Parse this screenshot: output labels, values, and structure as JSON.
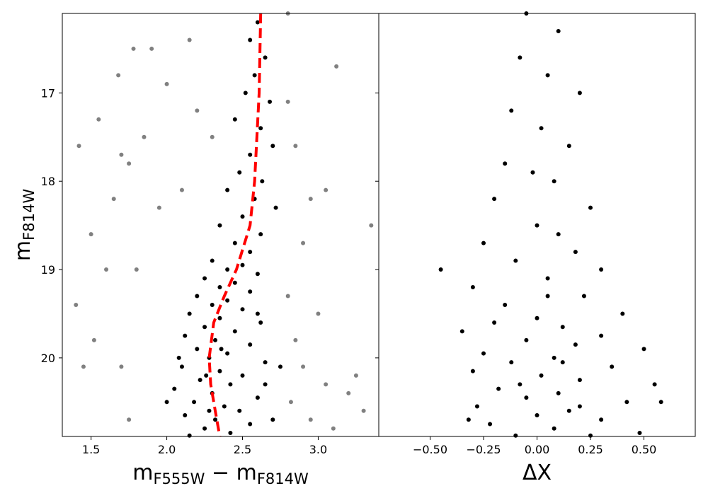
{
  "chart_data": [
    {
      "type": "scatter",
      "xlabel": [
        {
          "text": "m"
        },
        {
          "text": "F555W",
          "sub": true
        },
        {
          "text": " − m"
        },
        {
          "text": "F814W",
          "sub": true
        }
      ],
      "ylabel": [
        {
          "text": "m"
        },
        {
          "text": "F814W",
          "sub": true
        }
      ],
      "xlim": [
        1.31,
        3.4
      ],
      "ylim": [
        16.1,
        20.89
      ],
      "y_inverted": true,
      "ytick_labels_shown": true,
      "xticks": [
        1.5,
        {
          "value": 2.0,
          "label": "2.0"
        },
        2.5,
        {
          "value": 3.0,
          "label": "3.0"
        }
      ],
      "yticks": [
        17,
        18,
        19,
        20
      ],
      "series": [
        {
          "style": "points",
          "color": "#808080",
          "x": [
            1.42,
            1.55,
            1.7,
            1.75,
            1.65,
            1.85,
            1.5,
            1.6,
            1.4,
            1.78,
            1.9,
            2.0,
            1.68,
            2.2,
            2.3,
            1.95,
            1.8,
            2.1,
            2.8,
            2.85,
            2.95,
            3.05,
            2.9,
            3.35,
            2.8,
            3.0,
            2.85,
            2.9,
            3.05,
            3.2,
            3.3,
            2.95,
            3.1,
            2.82,
            3.25,
            1.7,
            1.45,
            1.75,
            1.52,
            2.15,
            2.8,
            3.12
          ],
          "values": [
            17.6,
            17.3,
            17.7,
            17.8,
            18.2,
            17.5,
            18.6,
            19.0,
            19.4,
            16.5,
            16.5,
            16.9,
            16.8,
            17.2,
            17.5,
            18.3,
            19.0,
            18.1,
            17.1,
            17.6,
            18.2,
            18.1,
            18.7,
            18.5,
            19.3,
            19.5,
            19.8,
            20.1,
            20.3,
            20.4,
            20.6,
            20.7,
            20.8,
            20.5,
            20.2,
            20.1,
            20.1,
            20.7,
            19.8,
            16.4,
            16.1,
            16.7
          ]
        },
        {
          "style": "points",
          "color": "#000000",
          "x": [
            2.6,
            2.55,
            2.65,
            2.58,
            2.52,
            2.68,
            2.45,
            2.62,
            2.7,
            2.55,
            2.48,
            2.63,
            2.4,
            2.58,
            2.72,
            2.5,
            2.35,
            2.62,
            2.45,
            2.55,
            2.3,
            2.5,
            2.4,
            2.6,
            2.25,
            2.45,
            2.35,
            2.55,
            2.2,
            2.4,
            2.3,
            2.5,
            2.15,
            2.35,
            2.62,
            2.25,
            2.45,
            2.12,
            2.32,
            2.55,
            2.2,
            2.4,
            2.28,
            2.65,
            2.1,
            2.35,
            2.5,
            2.22,
            2.42,
            2.05,
            2.3,
            2.6,
            2.18,
            2.38,
            2.48,
            2.12,
            2.32,
            2.55,
            2.25,
            2.42,
            2.15,
            2.7,
            2.0,
            2.65,
            2.08,
            2.6,
            2.75,
            2.28,
            2.36,
            2.26
          ],
          "values": [
            16.2,
            16.4,
            16.6,
            16.8,
            17.0,
            17.1,
            17.3,
            17.4,
            17.6,
            17.7,
            17.9,
            18.0,
            18.1,
            18.2,
            18.3,
            18.4,
            18.5,
            18.6,
            18.7,
            18.8,
            18.9,
            18.95,
            19.0,
            19.05,
            19.1,
            19.15,
            19.2,
            19.25,
            19.3,
            19.35,
            19.4,
            19.45,
            19.5,
            19.55,
            19.6,
            19.65,
            19.7,
            19.75,
            19.8,
            19.85,
            19.9,
            19.95,
            20.0,
            20.05,
            20.1,
            20.15,
            20.2,
            20.25,
            20.3,
            20.35,
            20.4,
            20.45,
            20.5,
            20.55,
            20.6,
            20.65,
            20.7,
            20.75,
            20.8,
            20.85,
            20.88,
            20.7,
            20.5,
            20.3,
            20.0,
            19.5,
            20.1,
            20.6,
            19.9,
            20.2
          ]
        },
        {
          "style": "dashed-line",
          "color": "#ff0000",
          "x": [
            2.62,
            2.61,
            2.58,
            2.55,
            2.46,
            2.38,
            2.31,
            2.28,
            2.29,
            2.32,
            2.35
          ],
          "values": [
            16.1,
            17,
            18,
            18.5,
            19,
            19.3,
            19.6,
            20,
            20.3,
            20.6,
            20.89
          ]
        }
      ]
    },
    {
      "type": "scatter",
      "xlabel": [
        {
          "text": "ΔX"
        }
      ],
      "xlim": [
        -0.74,
        0.74
      ],
      "ylim": [
        16.1,
        20.89
      ],
      "y_inverted": true,
      "ytick_labels_shown": false,
      "xticks": [
        {
          "value": -0.5,
          "label": "−0.50"
        },
        {
          "value": -0.25,
          "label": "−0.25"
        },
        {
          "value": 0,
          "label": "0.00"
        },
        {
          "value": 0.25,
          "label": "0.25"
        },
        {
          "value": 0.5,
          "label": "0.50"
        }
      ],
      "yticks": [
        17,
        18,
        19,
        20
      ],
      "series": [
        {
          "style": "points",
          "color": "#000000",
          "x": [
            -0.05,
            0.1,
            -0.08,
            0.05,
            0.2,
            -0.12,
            0.02,
            0.15,
            -0.15,
            0.08,
            -0.2,
            0.25,
            0.0,
            -0.25,
            0.18,
            -0.1,
            0.3,
            -0.45,
            0.05,
            -0.3,
            0.22,
            -0.15,
            0.4,
            0.0,
            -0.2,
            0.12,
            -0.35,
            0.3,
            -0.05,
            0.18,
            0.5,
            -0.25,
            0.08,
            -0.12,
            0.35,
            -0.3,
            0.02,
            0.2,
            0.55,
            -0.18,
            0.1,
            -0.05,
            0.42,
            -0.28,
            0.15,
            0.0,
            0.3,
            -0.22,
            0.08,
            0.48,
            -0.1,
            0.25,
            -0.32,
            0.58,
            0.05,
            0.1,
            -0.02,
            0.12,
            -0.08,
            0.2
          ],
          "values": [
            16.1,
            16.3,
            16.6,
            16.8,
            17.0,
            17.2,
            17.4,
            17.6,
            17.8,
            18.0,
            18.2,
            18.3,
            18.5,
            18.7,
            18.8,
            18.9,
            19.0,
            19.0,
            19.1,
            19.2,
            19.3,
            19.4,
            19.5,
            19.55,
            19.6,
            19.65,
            19.7,
            19.75,
            19.8,
            19.85,
            19.9,
            19.95,
            20.0,
            20.05,
            20.1,
            20.15,
            20.2,
            20.25,
            20.3,
            20.35,
            20.4,
            20.45,
            20.5,
            20.55,
            20.6,
            20.65,
            20.7,
            20.75,
            20.8,
            20.85,
            20.88,
            20.88,
            20.7,
            20.5,
            19.3,
            18.6,
            17.9,
            20.05,
            20.3,
            20.55
          ]
        }
      ]
    }
  ]
}
